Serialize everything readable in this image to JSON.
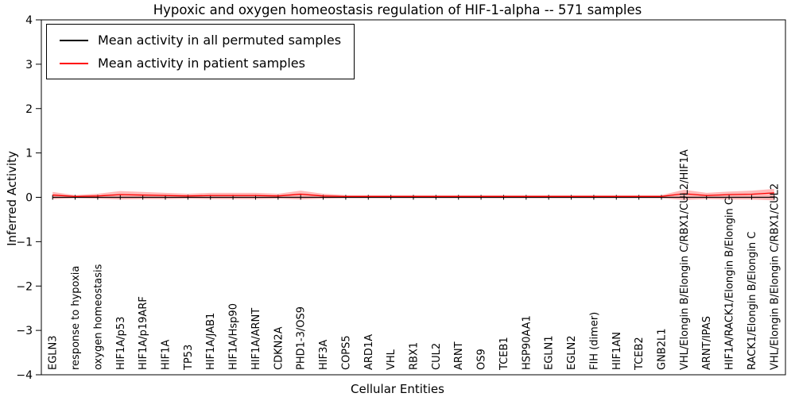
{
  "figure": {
    "title": "Hypoxic and oxygen homeostasis regulation of HIF-1-alpha -- 571 samples",
    "xlabel": "Cellular Entities",
    "ylabel": "Inferred Activity"
  },
  "legend": {
    "permuted_label": "Mean activity in all permuted samples",
    "patient_label": "Mean activity in patient samples"
  },
  "colors": {
    "permuted_line": "#000000",
    "patient_line": "#ff0000",
    "band_fill": "#ff0000",
    "band_opacity": 0.28,
    "axis": "#000000"
  },
  "chart_data": {
    "type": "line",
    "title": "Hypoxic and oxygen homeostasis regulation of HIF-1-alpha -- 571 samples",
    "xlabel": "Cellular Entities",
    "ylabel": "Inferred Activity",
    "ylim": [
      -4,
      4
    ],
    "yticks": [
      -4,
      -3,
      -2,
      -1,
      0,
      1,
      2,
      3,
      4
    ],
    "grid": false,
    "legend_position": "upper left",
    "categories": [
      "EGLN3",
      "response to hypoxia",
      "oxygen homeostasis",
      "HIF1A/p53",
      "HIF1A/p19ARF",
      "HIF1A",
      "TP53",
      "HIF1A/JAB1",
      "HIF1A/Hsp90",
      "HIF1A/ARNT",
      "CDKN2A",
      "PHD1-3/OS9",
      "HIF3A",
      "COPS5",
      "ARD1A",
      "VHL",
      "RBX1",
      "CUL2",
      "ARNT",
      "OS9",
      "TCEB1",
      "HSP90AA1",
      "EGLN1",
      "EGLN2",
      "FIH (dimer)",
      "HIF1AN",
      "TCEB2",
      "GNB2L1",
      "VHL/Elongin B/Elongin C/RBX1/CUL2/HIF1A",
      "ARNT/IPAS",
      "HIF1A/RACK1/Elongin B/Elongin C",
      "RACK1/Elongin B/Elongin C",
      "VHL/Elongin B/Elongin C/RBX1/CUL2"
    ],
    "series": [
      {
        "name": "Mean activity in all permuted samples",
        "color": "#000000",
        "values": [
          0,
          0,
          0,
          0,
          0,
          0,
          0,
          0,
          0,
          0,
          0,
          0,
          0,
          0,
          0,
          0,
          0,
          0,
          0,
          0,
          0,
          0,
          0,
          0,
          0,
          0,
          0,
          0,
          0,
          0,
          0,
          0,
          0
        ]
      },
      {
        "name": "Mean activity in patient samples",
        "color": "#ff0000",
        "values": [
          0.05,
          0.02,
          0.03,
          0.06,
          0.05,
          0.04,
          0.03,
          0.04,
          0.04,
          0.04,
          0.03,
          0.07,
          0.03,
          0.02,
          0.02,
          0.02,
          0.02,
          0.02,
          0.02,
          0.02,
          0.02,
          0.02,
          0.02,
          0.02,
          0.02,
          0.02,
          0.02,
          0.02,
          0.08,
          0.04,
          0.06,
          0.07,
          0.1
        ]
      }
    ],
    "band": {
      "name": "patient-samples-confidence-band",
      "upper": [
        0.12,
        0.05,
        0.08,
        0.14,
        0.12,
        0.1,
        0.08,
        0.1,
        0.1,
        0.1,
        0.08,
        0.15,
        0.08,
        0.05,
        0.05,
        0.05,
        0.05,
        0.05,
        0.05,
        0.05,
        0.05,
        0.05,
        0.05,
        0.05,
        0.05,
        0.05,
        0.05,
        0.05,
        0.17,
        0.1,
        0.13,
        0.15,
        0.19
      ],
      "lower": [
        -0.04,
        -0.02,
        -0.03,
        -0.05,
        -0.04,
        -0.04,
        -0.03,
        -0.04,
        -0.04,
        -0.04,
        -0.03,
        -0.05,
        -0.03,
        -0.02,
        -0.02,
        -0.02,
        -0.02,
        -0.02,
        -0.02,
        -0.02,
        -0.02,
        -0.02,
        -0.02,
        -0.02,
        -0.02,
        -0.02,
        -0.02,
        -0.02,
        -0.06,
        -0.04,
        -0.05,
        -0.05,
        -0.07
      ]
    }
  }
}
